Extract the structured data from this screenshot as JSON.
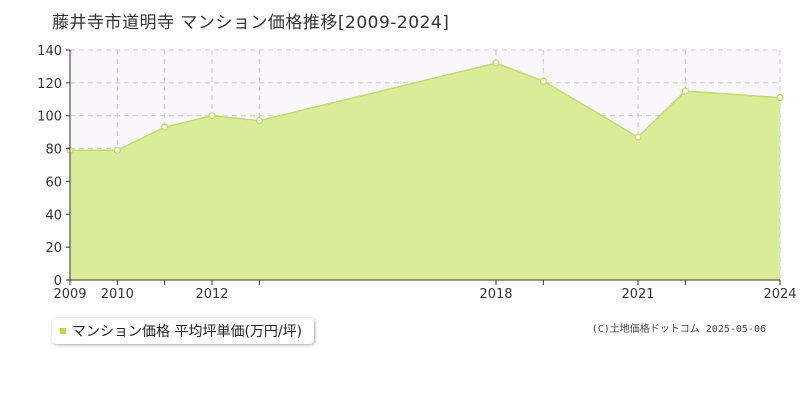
{
  "title": "藤井寺市道明寺 マンション価格推移[2009-2024]",
  "legend": {
    "label": "マンション価格 平均坪単価(万円/坪)"
  },
  "copyright": "(C)土地価格ドットコム 2025-05-06",
  "colors": {
    "fill": "#d9ec98",
    "line": "#bfe05a",
    "grid": "#cccccc",
    "bg": "#f9f7f9",
    "swatch": "#b9dd4f"
  },
  "chart_data": {
    "type": "area",
    "x": [
      2009,
      2010,
      2011,
      2012,
      2013,
      2018,
      2019,
      2021,
      2022,
      2024
    ],
    "series": [
      {
        "name": "マンション価格 平均坪単価(万円/坪)",
        "values": [
          79,
          79,
          93,
          100,
          97,
          132,
          121,
          87,
          115,
          111
        ]
      }
    ],
    "xticks": [
      "2009",
      "2010",
      "2012",
      "2018",
      "2021",
      "2024"
    ],
    "yticks": [
      "0",
      "20",
      "40",
      "60",
      "80",
      "100",
      "120",
      "140"
    ],
    "ylim": [
      0,
      140
    ],
    "grid": true,
    "legend_position": "bottom-left"
  }
}
